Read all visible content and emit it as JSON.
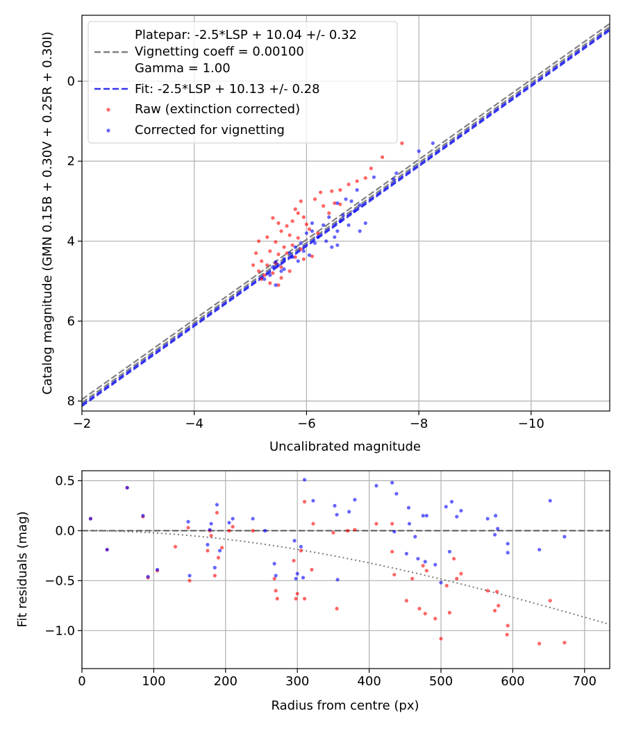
{
  "colors": {
    "raw": "#ff0000",
    "corrected": "#0000ff",
    "platepar_line": "#808080",
    "fit_line": "#3333ee",
    "grid": "#b0b0b0"
  },
  "chart_data": [
    {
      "type": "scatter",
      "xlabel": "Uncalibrated magnitude",
      "ylabel": "Catalog magnitude (GMN 0.15B + 0.30V + 0.25R + 0.30I)",
      "xlim": [
        -2,
        -11.4
      ],
      "ylim": [
        8.25,
        -1.65
      ],
      "xticks": [
        -2,
        -4,
        -6,
        -8,
        -10
      ],
      "xtick_labels": [
        "−2",
        "−4",
        "−6",
        "−8",
        "−10"
      ],
      "yticks": [
        0,
        2,
        4,
        6,
        8
      ],
      "ytick_labels": [
        "0",
        "2",
        "4",
        "6",
        "8"
      ],
      "grid": true,
      "legend": {
        "position": "top-left",
        "platepar": [
          "Platepar: -2.5*LSP + 10.04 +/- 0.32",
          "Vignetting coeff = 0.00100",
          "Gamma = 1.00"
        ],
        "fit": "Fit: -2.5*LSP + 10.13 +/- 0.28",
        "raw": "Raw (extinction corrected)",
        "corrected": "Corrected for vignetting"
      },
      "lines": [
        {
          "name": "platepar_1",
          "style": "dashed",
          "color": "platepar",
          "x": [
            -2,
            -11.4
          ],
          "y": [
            7.96,
            -1.44
          ]
        },
        {
          "name": "platepar_2",
          "style": "dashed",
          "color": "platepar",
          "x": [
            -2,
            -11.4
          ],
          "y": [
            8.04,
            -1.36
          ]
        },
        {
          "name": "fit_1",
          "style": "dashed",
          "color": "fit",
          "x": [
            -2,
            -11.4
          ],
          "y": [
            8.09,
            -1.31
          ]
        },
        {
          "name": "fit_2",
          "style": "dashed",
          "color": "fit",
          "x": [
            -2,
            -11.4
          ],
          "y": [
            8.13,
            -1.27
          ]
        }
      ],
      "series": [
        {
          "name": "Raw (extinction corrected)",
          "color": "raw",
          "points": [
            [
              -7.7,
              1.55
            ],
            [
              -7.35,
              1.9
            ],
            [
              -7.15,
              2.18
            ],
            [
              -7.05,
              2.42
            ],
            [
              -6.9,
              2.5
            ],
            [
              -6.75,
              2.58
            ],
            [
              -6.6,
              2.72
            ],
            [
              -6.45,
              2.75
            ],
            [
              -6.25,
              2.78
            ],
            [
              -6.15,
              2.95
            ],
            [
              -6.3,
              3.12
            ],
            [
              -6.5,
              3.05
            ],
            [
              -6.6,
              3.08
            ],
            [
              -5.9,
              3.0
            ],
            [
              -5.8,
              3.2
            ],
            [
              -5.85,
              3.3
            ],
            [
              -5.75,
              3.5
            ],
            [
              -6.0,
              3.58
            ],
            [
              -5.4,
              3.42
            ],
            [
              -5.5,
              3.55
            ],
            [
              -5.65,
              3.62
            ],
            [
              -5.55,
              3.75
            ],
            [
              -5.7,
              3.85
            ],
            [
              -5.85,
              3.92
            ],
            [
              -6.05,
              3.7
            ],
            [
              -6.2,
              3.8
            ],
            [
              -5.3,
              3.9
            ],
            [
              -5.15,
              4.0
            ],
            [
              -5.45,
              4.02
            ],
            [
              -5.6,
              4.15
            ],
            [
              -5.75,
              4.1
            ],
            [
              -5.9,
              4.2
            ],
            [
              -5.35,
              4.25
            ],
            [
              -5.5,
              4.33
            ],
            [
              -5.65,
              4.3
            ],
            [
              -5.8,
              4.4
            ],
            [
              -5.95,
              4.45
            ],
            [
              -5.1,
              4.3
            ],
            [
              -5.2,
              4.5
            ],
            [
              -5.3,
              4.6
            ],
            [
              -5.45,
              4.55
            ],
            [
              -5.55,
              4.65
            ],
            [
              -5.15,
              4.75
            ],
            [
              -5.25,
              4.85
            ],
            [
              -5.4,
              4.8
            ],
            [
              -5.2,
              4.95
            ],
            [
              -5.35,
              5.05
            ],
            [
              -5.55,
              4.92
            ],
            [
              -5.05,
              4.6
            ],
            [
              -5.7,
              4.75
            ],
            [
              -6.4,
              3.3
            ],
            [
              -5.95,
              3.4
            ],
            [
              -5.5,
              5.1
            ],
            [
              -6.1,
              4.38
            ]
          ]
        },
        {
          "name": "Corrected for vignetting",
          "color": "corrected",
          "points": [
            [
              -8.25,
              1.55
            ],
            [
              -8.0,
              1.75
            ],
            [
              -7.6,
              2.3
            ],
            [
              -7.55,
              2.45
            ],
            [
              -7.2,
              2.4
            ],
            [
              -6.9,
              2.72
            ],
            [
              -6.7,
              2.95
            ],
            [
              -6.8,
              3.0
            ],
            [
              -6.95,
              3.1
            ],
            [
              -6.85,
              3.25
            ],
            [
              -6.65,
              3.35
            ],
            [
              -6.55,
              3.05
            ],
            [
              -6.6,
              3.5
            ],
            [
              -6.75,
              3.6
            ],
            [
              -6.95,
              3.75
            ],
            [
              -7.05,
              3.55
            ],
            [
              -6.4,
              3.4
            ],
            [
              -6.3,
              3.6
            ],
            [
              -6.2,
              3.9
            ],
            [
              -6.1,
              3.75
            ],
            [
              -6.0,
              3.8
            ],
            [
              -6.15,
              4.05
            ],
            [
              -6.35,
              4.0
            ],
            [
              -6.5,
              3.9
            ],
            [
              -6.45,
              4.15
            ],
            [
              -6.55,
              4.1
            ],
            [
              -5.9,
              4.05
            ],
            [
              -5.95,
              4.25
            ],
            [
              -5.8,
              4.15
            ],
            [
              -5.7,
              4.3
            ],
            [
              -5.6,
              4.45
            ],
            [
              -5.85,
              4.5
            ],
            [
              -6.05,
              4.35
            ],
            [
              -5.5,
              4.6
            ],
            [
              -5.4,
              4.65
            ],
            [
              -5.6,
              4.7
            ],
            [
              -5.75,
              4.4
            ],
            [
              -5.45,
              4.52
            ],
            [
              -5.35,
              4.85
            ],
            [
              -5.45,
              5.1
            ],
            [
              -5.25,
              4.95
            ],
            [
              -5.55,
              4.75
            ],
            [
              -6.1,
              3.55
            ],
            [
              -6.55,
              3.75
            ]
          ]
        }
      ]
    },
    {
      "type": "scatter",
      "xlabel": "Radius from centre (px)",
      "ylabel": "Fit residuals (mag)",
      "xlim": [
        0,
        735
      ],
      "ylim": [
        -1.38,
        0.6
      ],
      "xticks": [
        0,
        100,
        200,
        300,
        400,
        500,
        600,
        700
      ],
      "xtick_labels": [
        "0",
        "100",
        "200",
        "300",
        "400",
        "500",
        "600",
        "700"
      ],
      "yticks": [
        0.5,
        0.0,
        -0.5,
        -1.0
      ],
      "ytick_labels": [
        "0.5",
        "0.0",
        "−0.5",
        "−1.0"
      ],
      "grid": true,
      "zero_line": {
        "y": 0.0,
        "style": "dashed"
      },
      "vignetting_curve": {
        "style": "dotted",
        "coeff": 0.001,
        "gamma": 1.0
      },
      "series": [
        {
          "name": "Raw (extinction corrected)",
          "color": "raw",
          "points": [
            [
              12,
              0.12
            ],
            [
              35,
              -0.19
            ],
            [
              63,
              0.43
            ],
            [
              85,
              0.14
            ],
            [
              92,
              -0.47
            ],
            [
              105,
              -0.4
            ],
            [
              130,
              -0.16
            ],
            [
              148,
              0.03
            ],
            [
              150,
              -0.5
            ],
            [
              175,
              -0.2
            ],
            [
              178,
              0.0
            ],
            [
              180,
              -0.05
            ],
            [
              185,
              -0.45
            ],
            [
              188,
              0.18
            ],
            [
              190,
              -0.27
            ],
            [
              195,
              -0.17
            ],
            [
              205,
              0.0
            ],
            [
              210,
              0.04
            ],
            [
              238,
              0.0
            ],
            [
              268,
              -0.48
            ],
            [
              270,
              -0.6
            ],
            [
              272,
              -0.68
            ],
            [
              295,
              -0.3
            ],
            [
              298,
              -0.68
            ],
            [
              300,
              -0.63
            ],
            [
              305,
              -0.2
            ],
            [
              310,
              -0.68
            ],
            [
              310,
              0.29
            ],
            [
              320,
              -0.39
            ],
            [
              322,
              0.07
            ],
            [
              350,
              -0.02
            ],
            [
              355,
              -0.78
            ],
            [
              370,
              0.0
            ],
            [
              380,
              0.01
            ],
            [
              410,
              0.07
            ],
            [
              432,
              -0.21
            ],
            [
              432,
              0.07
            ],
            [
              435,
              -0.44
            ],
            [
              452,
              -0.7
            ],
            [
              460,
              -0.48
            ],
            [
              470,
              -0.78
            ],
            [
              475,
              -0.35
            ],
            [
              478,
              -0.83
            ],
            [
              480,
              -0.4
            ],
            [
              492,
              -0.88
            ],
            [
              500,
              -1.08
            ],
            [
              508,
              -0.55
            ],
            [
              512,
              -0.82
            ],
            [
              518,
              -0.28
            ],
            [
              522,
              -0.48
            ],
            [
              528,
              -0.43
            ],
            [
              565,
              -0.6
            ],
            [
              575,
              -0.8
            ],
            [
              578,
              -0.61
            ],
            [
              592,
              -1.04
            ],
            [
              593,
              -0.95
            ],
            [
              637,
              -1.13
            ],
            [
              652,
              -0.7
            ],
            [
              672,
              -1.12
            ],
            [
              580,
              -0.75
            ]
          ]
        },
        {
          "name": "Corrected for vignetting",
          "color": "corrected",
          "points": [
            [
              12,
              0.12
            ],
            [
              35,
              -0.19
            ],
            [
              63,
              0.43
            ],
            [
              85,
              0.15
            ],
            [
              92,
              -0.46
            ],
            [
              105,
              -0.39
            ],
            [
              148,
              0.09
            ],
            [
              150,
              -0.45
            ],
            [
              175,
              -0.14
            ],
            [
              178,
              0.01
            ],
            [
              180,
              0.07
            ],
            [
              185,
              -0.37
            ],
            [
              188,
              0.26
            ],
            [
              192,
              -0.2
            ],
            [
              205,
              0.08
            ],
            [
              210,
              0.12
            ],
            [
              238,
              0.12
            ],
            [
              255,
              0.0
            ],
            [
              268,
              -0.33
            ],
            [
              270,
              -0.45
            ],
            [
              296,
              -0.1
            ],
            [
              298,
              -0.48
            ],
            [
              300,
              -0.43
            ],
            [
              305,
              -0.16
            ],
            [
              308,
              -0.47
            ],
            [
              310,
              0.51
            ],
            [
              322,
              0.3
            ],
            [
              352,
              0.25
            ],
            [
              356,
              -0.49
            ],
            [
              355,
              0.16
            ],
            [
              372,
              0.19
            ],
            [
              380,
              0.31
            ],
            [
              410,
              0.45
            ],
            [
              432,
              0.48
            ],
            [
              435,
              -0.01
            ],
            [
              438,
              0.37
            ],
            [
              452,
              -0.23
            ],
            [
              455,
              0.23
            ],
            [
              456,
              0.07
            ],
            [
              464,
              -0.06
            ],
            [
              468,
              -0.28
            ],
            [
              475,
              0.15
            ],
            [
              478,
              -0.31
            ],
            [
              480,
              0.15
            ],
            [
              492,
              -0.34
            ],
            [
              500,
              -0.52
            ],
            [
              507,
              0.24
            ],
            [
              512,
              -0.21
            ],
            [
              515,
              0.29
            ],
            [
              522,
              0.14
            ],
            [
              528,
              0.2
            ],
            [
              565,
              0.12
            ],
            [
              575,
              -0.04
            ],
            [
              576,
              0.15
            ],
            [
              579,
              0.02
            ],
            [
              593,
              -0.22
            ],
            [
              593,
              -0.13
            ],
            [
              637,
              -0.19
            ],
            [
              652,
              0.3
            ],
            [
              672,
              -0.06
            ]
          ]
        }
      ]
    }
  ]
}
